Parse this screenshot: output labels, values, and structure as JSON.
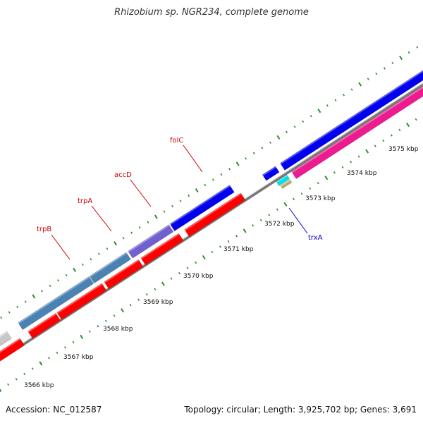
{
  "header": {
    "title": "Rhizobium sp. NGR234, complete genome"
  },
  "footer": {
    "accession": "Accession: NC_012587",
    "summary": "Topology: circular; Length: 3,925,702 bp; Genes: 3,691"
  },
  "scale": {
    "unit_suffix": "kbp",
    "ticks": [
      {
        "label": "3566 kbp"
      },
      {
        "label": "3567 kbp"
      },
      {
        "label": "3568 kbp"
      },
      {
        "label": "3569 kbp"
      },
      {
        "label": "3570 kbp"
      },
      {
        "label": "3571 kbp"
      },
      {
        "label": "3572 kbp"
      },
      {
        "label": "3573 kbp"
      },
      {
        "label": "3574 kbp"
      },
      {
        "label": "3575 kbp"
      }
    ]
  },
  "gene_labels": [
    {
      "name": "trpB",
      "color": "#cc0000"
    },
    {
      "name": "trpA",
      "color": "#cc0000"
    },
    {
      "name": "accD",
      "color": "#cc0000"
    },
    {
      "name": "folC",
      "color": "#cc0000"
    },
    {
      "name": "trxA",
      "color": "#0000cc"
    }
  ],
  "colors": {
    "backbone": "#888888",
    "ticks": "#2e8b2e",
    "cds_red": "#ff0000",
    "cds_steelblue": "#4a82b4",
    "cds_purple": "#7060d0",
    "cds_blue": "#0000ee",
    "cds_magenta": "#ee1a90",
    "cds_cyan": "#00e0e8",
    "cds_khaki": "#b8a860",
    "cds_gray": "#c8c8c8"
  }
}
